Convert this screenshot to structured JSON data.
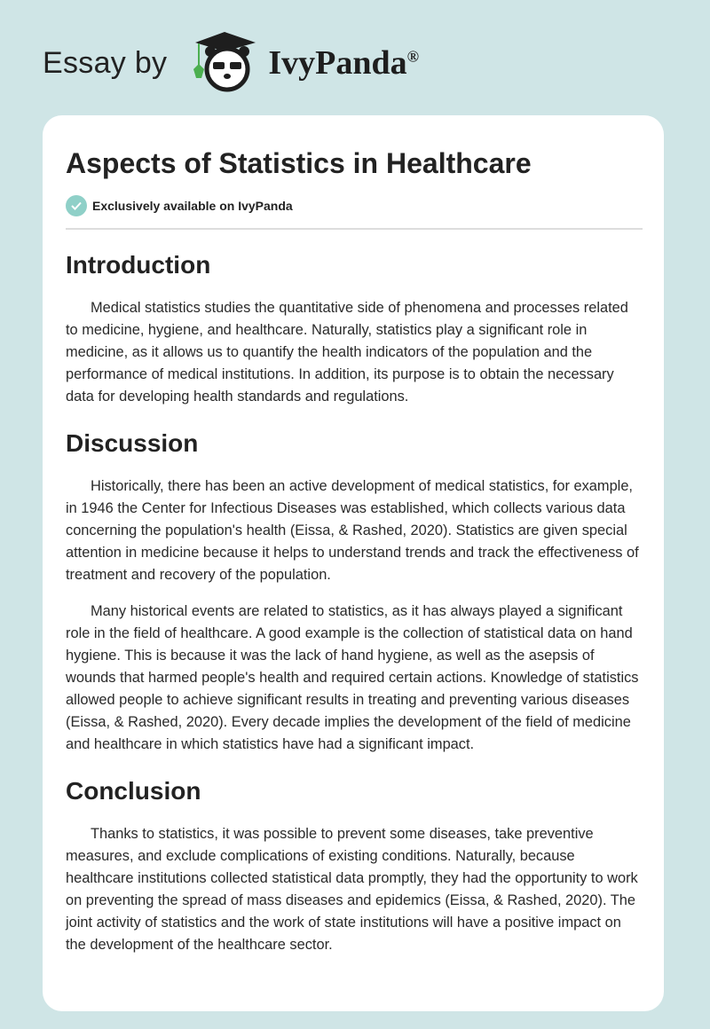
{
  "header": {
    "essay_by": "Essay by",
    "brand": "IvyPanda",
    "registered": "®"
  },
  "article": {
    "title": "Aspects of Statistics in Healthcare",
    "badge": "Exclusively available on IvyPanda",
    "sections": [
      {
        "heading": "Introduction",
        "paragraphs": [
          "Medical statistics studies the quantitative side of phenomena and processes related to medicine, hygiene, and healthcare. Naturally, statistics play a significant role in medicine, as it allows us to quantify the health indicators of the population and the performance of medical institutions. In addition, its purpose is to obtain the necessary data for developing health standards and regulations."
        ]
      },
      {
        "heading": "Discussion",
        "paragraphs": [
          "Historically, there has been an active development of medical statistics, for example, in 1946 the Center for Infectious Diseases was established, which collects various data concerning the population's health (Eissa, & Rashed, 2020). Statistics are given special attention in medicine because it helps to understand trends and track the effectiveness of treatment and recovery of the population.",
          "Many historical events are related to statistics, as it has always played a significant role in the field of healthcare. A good example is the collection of statistical data on hand hygiene. This is because it was the lack of hand hygiene, as well as the asepsis of wounds that harmed people's health and required certain actions. Knowledge of statistics allowed people to achieve significant results in treating and preventing various diseases (Eissa, & Rashed, 2020). Every decade implies the development of the field of medicine and healthcare in which statistics have had a significant impact."
        ]
      },
      {
        "heading": "Conclusion",
        "paragraphs": [
          "Thanks to statistics, it was possible to prevent some diseases, take preventive measures, and exclude complications of existing conditions. Naturally, because healthcare institutions collected statistical data promptly, they had the opportunity to work on preventing the spread of mass diseases and epidemics (Eissa, & Rashed, 2020). The joint activity of statistics and the work of state institutions will have a positive impact on the development of the healthcare sector."
        ]
      }
    ]
  },
  "colors": {
    "background": "#cfe5e6",
    "card": "#ffffff",
    "check": "#8fd0c8",
    "ivy": "#4caf50"
  }
}
